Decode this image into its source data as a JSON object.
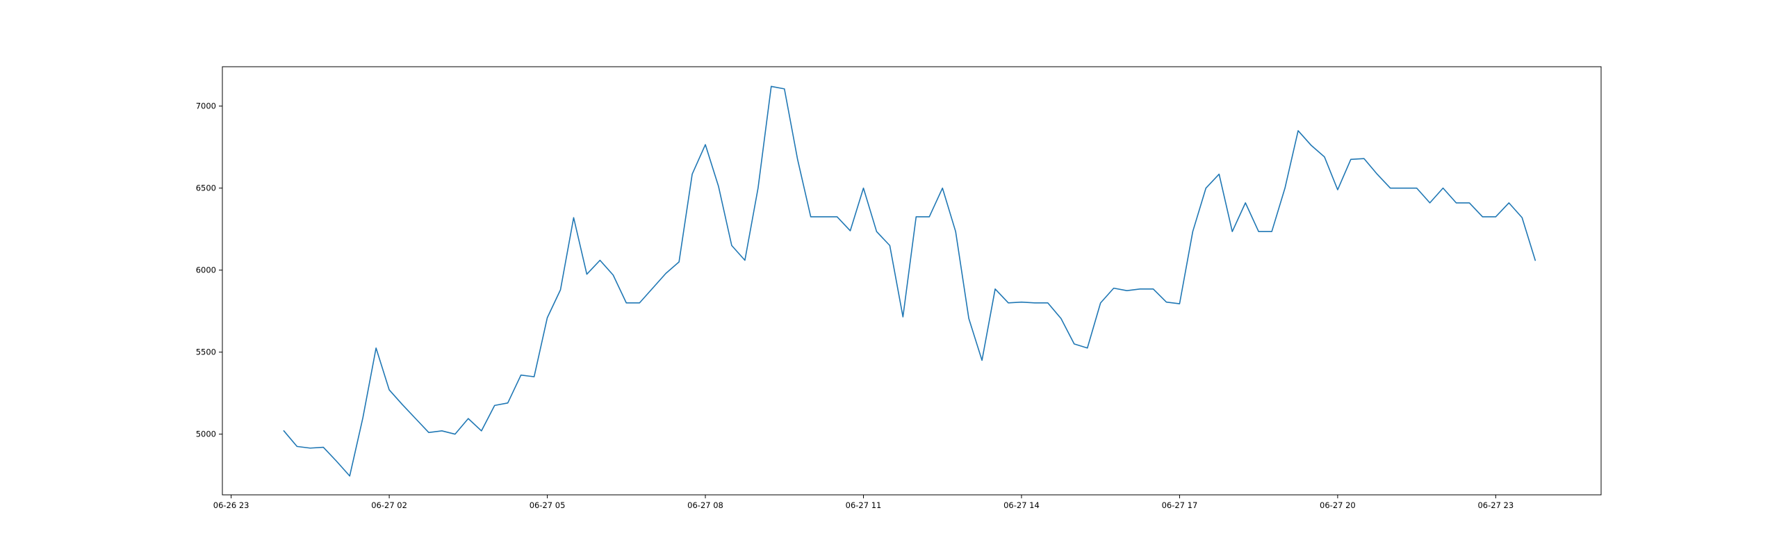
{
  "chart_data": {
    "type": "line",
    "title": "",
    "xlabel": "",
    "ylabel": "",
    "x_tick_labels": [
      "06-26 23",
      "06-27 02",
      "06-27 05",
      "06-27 08",
      "06-27 11",
      "06-27 14",
      "06-27 17",
      "06-27 20",
      "06-27 23"
    ],
    "y_tick_labels": [
      "5000",
      "5500",
      "6000",
      "6500",
      "7000"
    ],
    "y_ticks": [
      5000,
      5500,
      6000,
      6500,
      7000
    ],
    "xlim": [
      "06-26 22:50",
      "06-28 01:00"
    ],
    "ylim": [
      4630,
      7240
    ],
    "grid": false,
    "legend": "none",
    "series": [
      {
        "color": "#1f77b4",
        "x": [
          "06-27 00:00",
          "06-27 00:15",
          "06-27 00:30",
          "06-27 00:45",
          "06-27 01:00",
          "06-27 01:15",
          "06-27 01:30",
          "06-27 01:45",
          "06-27 02:00",
          "06-27 02:15",
          "06-27 02:30",
          "06-27 02:45",
          "06-27 03:00",
          "06-27 03:15",
          "06-27 03:30",
          "06-27 03:45",
          "06-27 04:00",
          "06-27 04:15",
          "06-27 04:30",
          "06-27 04:45",
          "06-27 05:00",
          "06-27 05:15",
          "06-27 05:30",
          "06-27 05:45",
          "06-27 06:00",
          "06-27 06:15",
          "06-27 06:30",
          "06-27 06:45",
          "06-27 07:00",
          "06-27 07:15",
          "06-27 07:30",
          "06-27 07:45",
          "06-27 08:00",
          "06-27 08:15",
          "06-27 08:30",
          "06-27 08:45",
          "06-27 09:00",
          "06-27 09:15",
          "06-27 09:30",
          "06-27 09:45",
          "06-27 10:00",
          "06-27 10:15",
          "06-27 10:30",
          "06-27 10:45",
          "06-27 11:00",
          "06-27 11:15",
          "06-27 11:30",
          "06-27 11:45",
          "06-27 12:00",
          "06-27 12:15",
          "06-27 12:30",
          "06-27 12:45",
          "06-27 13:00",
          "06-27 13:15",
          "06-27 13:30",
          "06-27 13:45",
          "06-27 14:00",
          "06-27 14:15",
          "06-27 14:30",
          "06-27 14:45",
          "06-27 15:00",
          "06-27 15:15",
          "06-27 15:30",
          "06-27 15:45",
          "06-27 16:00",
          "06-27 16:15",
          "06-27 16:30",
          "06-27 16:45",
          "06-27 17:00",
          "06-27 17:15",
          "06-27 17:30",
          "06-27 17:45",
          "06-27 18:00",
          "06-27 18:15",
          "06-27 18:30",
          "06-27 18:45",
          "06-27 19:00",
          "06-27 19:15",
          "06-27 19:30",
          "06-27 19:45",
          "06-27 20:00",
          "06-27 20:15",
          "06-27 20:30",
          "06-27 20:45",
          "06-27 21:00",
          "06-27 21:15",
          "06-27 21:30",
          "06-27 21:45",
          "06-27 22:00",
          "06-27 22:15",
          "06-27 22:30",
          "06-27 22:45",
          "06-27 23:00",
          "06-27 23:15",
          "06-27 23:30",
          "06-27 23:45"
        ],
        "y": [
          5020,
          4925,
          4915,
          4920,
          4835,
          4745,
          5100,
          5525,
          5270,
          5180,
          5095,
          5010,
          5020,
          5000,
          5095,
          5020,
          5175,
          5190,
          5360,
          5350,
          5710,
          5880,
          6320,
          5975,
          6060,
          5970,
          5800,
          5800,
          5890,
          5980,
          6050,
          6585,
          6765,
          6510,
          6150,
          6060,
          6500,
          7120,
          7105,
          6675,
          6325,
          6325,
          6325,
          6240,
          6500,
          6235,
          6150,
          5715,
          6325,
          6325,
          6500,
          6235,
          5705,
          5450,
          5885,
          5800,
          5805,
          5800,
          5800,
          5705,
          5550,
          5525,
          5800,
          5890,
          5875,
          5885,
          5885,
          5805,
          5795,
          6235,
          6500,
          6585,
          6235,
          6410,
          6235,
          6235,
          6500,
          6850,
          6760,
          6690,
          6490,
          6675,
          6680,
          6585,
          6500,
          6500,
          6500,
          6410,
          6500,
          6410,
          6410,
          6325,
          6325,
          6410,
          6320,
          6060
        ]
      }
    ]
  }
}
